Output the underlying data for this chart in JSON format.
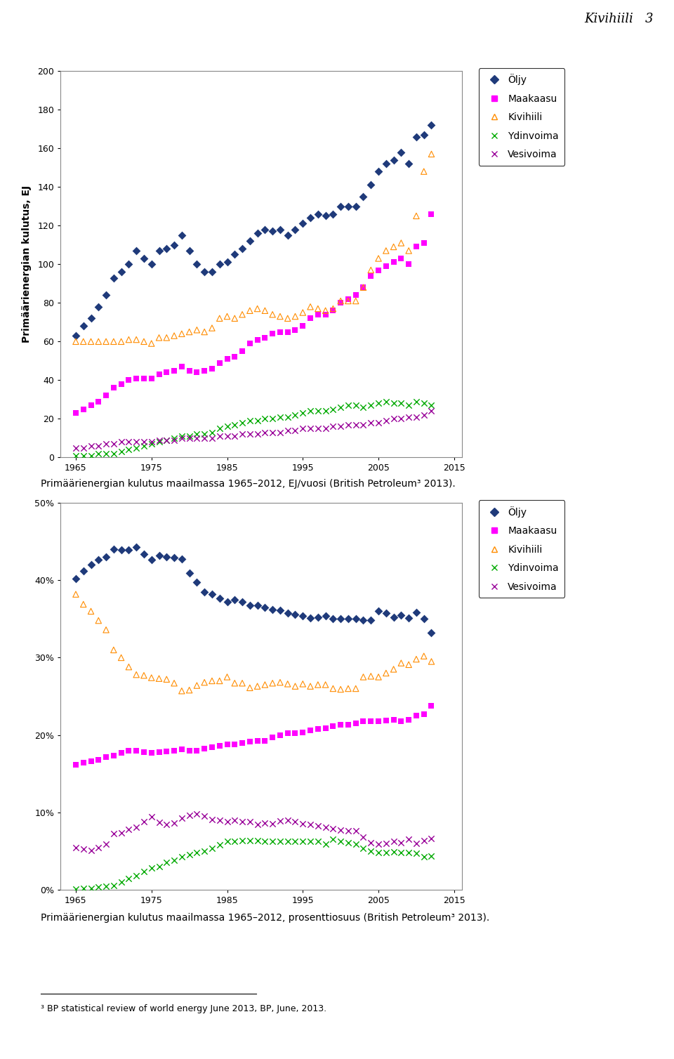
{
  "years": [
    1965,
    1966,
    1967,
    1968,
    1969,
    1970,
    1971,
    1972,
    1973,
    1974,
    1975,
    1976,
    1977,
    1978,
    1979,
    1980,
    1981,
    1982,
    1983,
    1984,
    1985,
    1986,
    1987,
    1988,
    1989,
    1990,
    1991,
    1992,
    1993,
    1994,
    1995,
    1996,
    1997,
    1998,
    1999,
    2000,
    2001,
    2002,
    2003,
    2004,
    2005,
    2006,
    2007,
    2008,
    2009,
    2010,
    2011,
    2012
  ],
  "oil_ej": [
    63,
    68,
    72,
    78,
    84,
    93,
    96,
    100,
    107,
    103,
    100,
    107,
    108,
    110,
    115,
    107,
    100,
    96,
    96,
    100,
    101,
    105,
    108,
    112,
    116,
    118,
    117,
    118,
    115,
    118,
    121,
    124,
    126,
    125,
    126,
    130,
    130,
    130,
    135,
    141,
    148,
    152,
    154,
    158,
    152,
    166,
    167,
    172
  ],
  "gas_ej": [
    23,
    25,
    27,
    29,
    32,
    36,
    38,
    40,
    41,
    41,
    41,
    43,
    44,
    45,
    47,
    45,
    44,
    45,
    46,
    49,
    51,
    52,
    55,
    59,
    61,
    62,
    64,
    65,
    65,
    66,
    68,
    72,
    74,
    74,
    76,
    80,
    82,
    84,
    88,
    94,
    97,
    99,
    101,
    103,
    100,
    109,
    111,
    126
  ],
  "coal_ej": [
    60,
    60,
    60,
    60,
    60,
    60,
    60,
    61,
    61,
    60,
    59,
    62,
    62,
    63,
    64,
    65,
    66,
    65,
    67,
    72,
    73,
    72,
    74,
    76,
    77,
    76,
    74,
    73,
    72,
    73,
    75,
    78,
    77,
    76,
    77,
    81,
    81,
    81,
    88,
    97,
    103,
    107,
    109,
    111,
    107,
    125,
    148,
    157
  ],
  "nuclear_ej": [
    1,
    1,
    1,
    2,
    2,
    2,
    3,
    4,
    5,
    6,
    7,
    8,
    9,
    10,
    11,
    11,
    12,
    12,
    13,
    15,
    16,
    17,
    18,
    19,
    19,
    20,
    20,
    21,
    21,
    22,
    23,
    24,
    24,
    24,
    25,
    26,
    27,
    27,
    26,
    27,
    28,
    29,
    28,
    28,
    27,
    29,
    28,
    27
  ],
  "hydro_ej": [
    5,
    5,
    6,
    6,
    7,
    7,
    8,
    8,
    8,
    8,
    8,
    9,
    9,
    9,
    10,
    10,
    10,
    10,
    10,
    11,
    11,
    11,
    12,
    12,
    12,
    13,
    13,
    13,
    14,
    14,
    15,
    15,
    15,
    15,
    16,
    16,
    17,
    17,
    17,
    18,
    18,
    19,
    20,
    20,
    21,
    21,
    22,
    24
  ],
  "oil_pct": [
    40.2,
    41.2,
    42.0,
    42.7,
    43.0,
    44.0,
    43.9,
    43.9,
    44.3,
    43.4,
    42.7,
    43.2,
    43.0,
    42.9,
    42.8,
    40.9,
    39.8,
    38.5,
    38.2,
    37.7,
    37.2,
    37.5,
    37.2,
    36.8,
    36.8,
    36.5,
    36.2,
    36.1,
    35.8,
    35.6,
    35.4,
    35.1,
    35.2,
    35.4,
    35.0,
    35.0,
    35.0,
    35.0,
    34.9,
    34.9,
    36.0,
    35.8,
    35.2,
    35.5,
    35.1,
    35.9,
    35.0,
    33.2
  ],
  "gas_pct": [
    16.1,
    16.4,
    16.6,
    16.8,
    17.1,
    17.3,
    17.7,
    18.0,
    18.0,
    17.8,
    17.7,
    17.8,
    17.9,
    18.0,
    18.1,
    18.0,
    18.0,
    18.2,
    18.4,
    18.6,
    18.8,
    18.8,
    19.0,
    19.1,
    19.2,
    19.2,
    19.7,
    20.0,
    20.2,
    20.2,
    20.3,
    20.6,
    20.8,
    20.9,
    21.1,
    21.3,
    21.3,
    21.5,
    21.8,
    21.8,
    21.8,
    21.9,
    22.0,
    21.8,
    22.0,
    22.5,
    22.7,
    23.8
  ],
  "coal_pct": [
    38.2,
    36.9,
    36.0,
    34.8,
    33.6,
    31.0,
    30.0,
    28.8,
    27.8,
    27.7,
    27.4,
    27.3,
    27.2,
    26.7,
    25.7,
    25.8,
    26.4,
    26.8,
    27.0,
    27.0,
    27.5,
    26.7,
    26.7,
    26.1,
    26.3,
    26.5,
    26.7,
    26.8,
    26.6,
    26.3,
    26.6,
    26.3,
    26.5,
    26.5,
    26.0,
    25.9,
    26.0,
    26.0,
    27.5,
    27.6,
    27.5,
    28.0,
    28.5,
    29.3,
    29.1,
    29.8,
    30.2,
    29.5
  ],
  "nuclear_pct": [
    0.1,
    0.2,
    0.2,
    0.3,
    0.4,
    0.5,
    1.0,
    1.4,
    1.8,
    2.3,
    2.8,
    3.0,
    3.5,
    3.8,
    4.2,
    4.5,
    4.8,
    5.0,
    5.3,
    5.8,
    6.2,
    6.2,
    6.3,
    6.3,
    6.3,
    6.2,
    6.2,
    6.2,
    6.2,
    6.2,
    6.2,
    6.2,
    6.2,
    5.9,
    6.5,
    6.2,
    6.1,
    5.9,
    5.3,
    5.0,
    4.8,
    4.8,
    4.9,
    4.8,
    4.8,
    4.7,
    4.2,
    4.3
  ],
  "hydro_pct": [
    5.4,
    5.2,
    5.1,
    5.4,
    5.9,
    7.2,
    7.3,
    7.8,
    8.1,
    8.8,
    9.4,
    8.7,
    8.4,
    8.6,
    9.2,
    9.6,
    9.8,
    9.5,
    9.1,
    9.0,
    8.8,
    9.0,
    8.8,
    8.8,
    8.4,
    8.6,
    8.5,
    8.9,
    9.0,
    8.8,
    8.5,
    8.4,
    8.2,
    8.1,
    7.9,
    7.7,
    7.6,
    7.6,
    6.8,
    6.1,
    5.9,
    6.0,
    6.2,
    6.1,
    6.5,
    6.0,
    6.3,
    6.6
  ],
  "header_text": "Kivihiili   3",
  "ylabel1": "Primäärienergian kulutus, EJ",
  "caption1": "Primäärienergian kulutus maailmassa 1965–2012, EJ/vuosi (British Petroleum³ 2013).",
  "caption2": "Primäärienergian kulutus maailmassa 1965–2012, prosenttiosuus (British Petroleum³ 2013).",
  "footnote": "³ BP statistical review of world energy June 2013, BP, June, 2013.",
  "oil_color": "#1f3a7a",
  "gas_color": "#ff00ff",
  "coal_color": "#ff8c00",
  "nuclear_color": "#00aa00",
  "hydro_color": "#990099",
  "bg_color": "#ffffff"
}
